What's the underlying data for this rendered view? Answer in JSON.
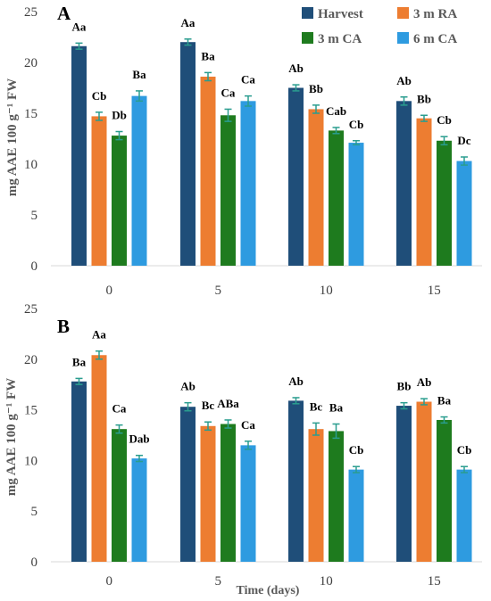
{
  "legend": [
    {
      "name": "Harvest",
      "color": "#1f4e79"
    },
    {
      "name": "3 m RA",
      "color": "#ed7d31"
    },
    {
      "name": "3 m CA",
      "color": "#1e7b1e"
    },
    {
      "name": "6 m CA",
      "color": "#2e9be0"
    }
  ],
  "xlabel": "Time (days)",
  "chart_data": [
    {
      "type": "bar",
      "panel": "A",
      "ylabel": "mg AAE 100 g⁻¹ FW",
      "ylim": [
        0,
        25
      ],
      "yticks": [
        0,
        5,
        10,
        15,
        20,
        25
      ],
      "categories": [
        "0",
        "5",
        "10",
        "15"
      ],
      "series": [
        {
          "name": "Harvest",
          "color": "#1f4e79",
          "values": [
            21.6,
            22.0,
            17.5,
            16.2
          ],
          "errors": [
            0.3,
            0.3,
            0.3,
            0.4
          ],
          "labels": [
            "Aa",
            "Aa",
            "Ab",
            "Ab"
          ]
        },
        {
          "name": "3 m RA",
          "color": "#ed7d31",
          "values": [
            14.7,
            18.6,
            15.4,
            14.5
          ],
          "errors": [
            0.4,
            0.4,
            0.4,
            0.3
          ],
          "labels": [
            "Cb",
            "Ba",
            "Bb",
            "Bb"
          ]
        },
        {
          "name": "3 m CA",
          "color": "#1e7b1e",
          "values": [
            12.8,
            14.8,
            13.3,
            12.3
          ],
          "errors": [
            0.4,
            0.6,
            0.3,
            0.4
          ],
          "labels": [
            "Db",
            "Ca",
            "Cab",
            "Cb"
          ]
        },
        {
          "name": "6 m CA",
          "color": "#2e9be0",
          "values": [
            16.7,
            16.2,
            12.1,
            10.3
          ],
          "errors": [
            0.5,
            0.5,
            0.2,
            0.4
          ],
          "labels": [
            "Ba",
            "Ca",
            "Cb",
            "Dc"
          ]
        }
      ]
    },
    {
      "type": "bar",
      "panel": "B",
      "ylabel": "mg AAE 100 g⁻¹ FW",
      "ylim": [
        0,
        25
      ],
      "yticks": [
        0,
        5,
        10,
        15,
        20,
        25
      ],
      "categories": [
        "0",
        "5",
        "10",
        "15"
      ],
      "series": [
        {
          "name": "Harvest",
          "color": "#1f4e79",
          "values": [
            17.8,
            15.3,
            15.9,
            15.4
          ],
          "errors": [
            0.3,
            0.4,
            0.3,
            0.3
          ],
          "labels": [
            "Ba",
            "Ab",
            "Ab",
            "Bb"
          ]
        },
        {
          "name": "3 m RA",
          "color": "#ed7d31",
          "values": [
            20.4,
            13.4,
            13.1,
            15.8
          ],
          "errors": [
            0.4,
            0.4,
            0.6,
            0.3
          ],
          "labels": [
            "Aa",
            "Bc",
            "Bc",
            "Ab"
          ]
        },
        {
          "name": "3 m CA",
          "color": "#1e7b1e",
          "values": [
            13.1,
            13.6,
            12.9,
            14.0
          ],
          "errors": [
            0.4,
            0.4,
            0.7,
            0.3
          ],
          "labels": [
            "Ca",
            "ABa",
            "Ba",
            "Ba"
          ]
        },
        {
          "name": "6 m CA",
          "color": "#2e9be0",
          "values": [
            10.2,
            11.5,
            9.1,
            9.1
          ],
          "errors": [
            0.3,
            0.4,
            0.3,
            0.3
          ],
          "labels": [
            "Dab",
            "Ca",
            "Cb",
            "Cb"
          ]
        }
      ]
    }
  ]
}
